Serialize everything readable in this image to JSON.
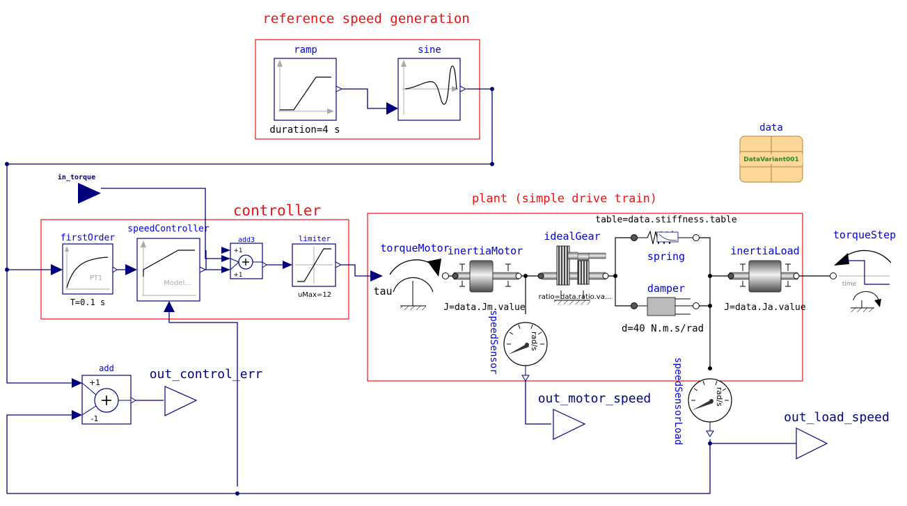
{
  "colors": {
    "signal": "#00007f",
    "frame": "#ee1111",
    "blue_text": "#0000dd",
    "red_text": "#ee1111",
    "gray": "#555555",
    "record_fill": "#fdd89a",
    "record_text": "#228b22"
  },
  "groups": {
    "reference": "reference speed generation",
    "controller": "controller",
    "plant": "plant (simple drive train)"
  },
  "blocks": {
    "ramp": {
      "name": "ramp",
      "param": "duration=4 s"
    },
    "sine": {
      "name": "sine"
    },
    "data": {
      "name": "data",
      "value": "DataVariant001"
    },
    "first_order": {
      "name": "firstOrder",
      "inner": "PT1",
      "param": "T=0.1 s"
    },
    "speed_controller": {
      "name": "speedController",
      "inner": "Model..."
    },
    "add3": {
      "name": "add3",
      "plus1": "+1",
      "plus2": "+1"
    },
    "limiter": {
      "name": "limiter",
      "param": "uMax=12"
    },
    "add": {
      "name": "add",
      "plus": "+1",
      "minus": "-1"
    },
    "torque_motor": {
      "name": "torqueMotor",
      "port": "tau"
    },
    "inertia_motor": {
      "name": "inertiaMotor",
      "param": "J=data.Jm.value"
    },
    "ideal_gear": {
      "name": "idealGear",
      "param": "ratio=data.ratio.va..."
    },
    "spring": {
      "name": "spring",
      "param": "table=data.stiffness.table"
    },
    "damper": {
      "name": "damper",
      "param": "d=40 N.m.s/rad"
    },
    "inertia_load": {
      "name": "inertiaLoad",
      "param": "J=data.Ja.value"
    },
    "torque_step": {
      "name": "torqueStep",
      "axis": "time"
    },
    "speed_sensor": {
      "name": "speedSensor",
      "unit": "rad/s"
    },
    "speed_sensor_load": {
      "name": "speedSensorLoad",
      "unit": "rad/s"
    }
  },
  "ports": {
    "in_torque": "in_torque",
    "out_control_err": "out_control_err",
    "out_motor_speed": "out_motor_speed",
    "out_load_speed": "out_load_speed"
  }
}
